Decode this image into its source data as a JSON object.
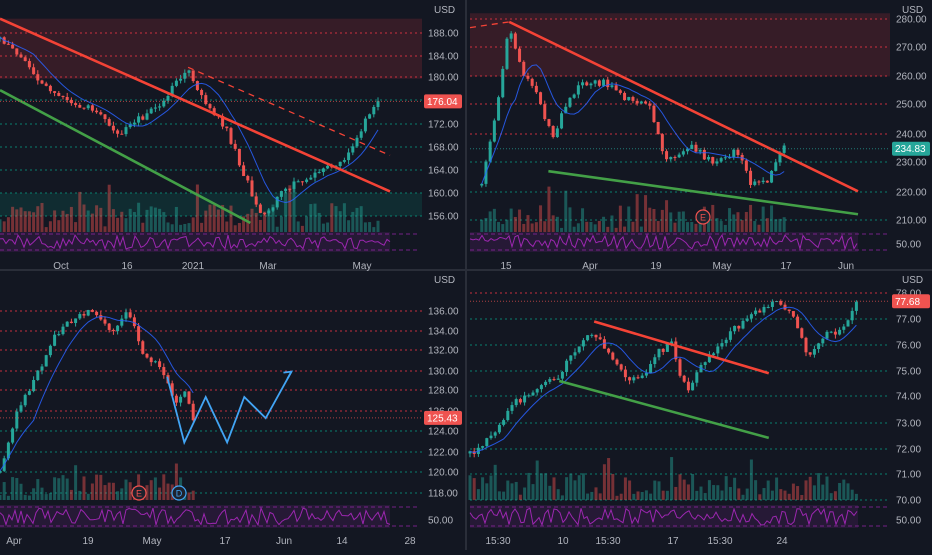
{
  "colors": {
    "background": "#131722",
    "axis_text": "#b2b5be",
    "grid_red": "#f23645",
    "grid_green": "#089981",
    "candle_up": "#26a69a",
    "candle_down": "#ef5350",
    "trend_red": "#f44336",
    "trend_green": "#43a047",
    "projection_blue": "#42a5f5",
    "rsi": "#9c27b0",
    "ma": "#2962ff"
  },
  "chart_data": [
    {
      "id": "top-left",
      "type": "candlestick",
      "currency": "USD",
      "price_ticks": [
        "188.00",
        "184.00",
        "180.00",
        "176.00",
        "172.00",
        "168.00",
        "164.00",
        "160.00",
        "156.00"
      ],
      "ylim": [
        153.0,
        193.0
      ],
      "current_price": "176.04",
      "current_price_color": "red",
      "x_ticks": [
        "Oct",
        "16",
        "2021",
        "Mar",
        "May"
      ],
      "xlim": [
        "2020-09-01",
        "2021-06-10"
      ],
      "resistance_zone": [
        180.0,
        190.5
      ],
      "support_zone": [
        156.0,
        160.0
      ],
      "trendlines": [
        {
          "kind": "descending-resistance",
          "color": "red",
          "style": "solid",
          "from": [
            "2020-09-01",
            190.5
          ],
          "to": [
            "2021-06-10",
            160.3
          ]
        },
        {
          "kind": "channel-top",
          "color": "red",
          "style": "dashed",
          "from": [
            "2021-01-15",
            182.0
          ],
          "to": [
            "2021-06-10",
            166.6
          ]
        },
        {
          "kind": "descending-support",
          "color": "green",
          "style": "solid",
          "from": [
            "2020-09-01",
            178.0
          ],
          "to": [
            "2021-03-01",
            154.8
          ]
        }
      ],
      "price_path": [
        [
          "2020-09-01",
          187
        ],
        [
          "2020-09-20",
          183
        ],
        [
          "2020-10-05",
          178
        ],
        [
          "2020-10-25",
          176
        ],
        [
          "2020-11-10",
          174
        ],
        [
          "2020-11-25",
          170
        ],
        [
          "2020-12-10",
          173
        ],
        [
          "2020-12-25",
          175
        ],
        [
          "2021-01-08",
          180
        ],
        [
          "2021-01-14",
          182
        ],
        [
          "2021-01-28",
          175
        ],
        [
          "2021-02-10",
          172
        ],
        [
          "2021-02-25",
          163
        ],
        [
          "2021-03-05",
          158
        ],
        [
          "2021-03-12",
          156
        ],
        [
          "2021-03-25",
          161
        ],
        [
          "2021-04-08",
          162
        ],
        [
          "2021-04-22",
          164
        ],
        [
          "2021-05-05",
          165
        ],
        [
          "2021-05-15",
          168
        ],
        [
          "2021-05-25",
          174
        ],
        [
          "2021-06-01",
          176.04
        ]
      ],
      "indicators": [
        "volume",
        "rsi"
      ]
    },
    {
      "id": "top-right",
      "type": "candlestick",
      "currency": "USD",
      "price_ticks": [
        "280.00",
        "270.00",
        "260.00",
        "250.00",
        "240.00",
        "230.00",
        "220.00",
        "210.00",
        "50.00"
      ],
      "ylim": [
        204.0,
        283.0
      ],
      "current_price": "234.83",
      "current_price_color": "teal",
      "x_ticks": [
        "15",
        "Apr",
        "19",
        "May",
        "17",
        "Jun"
      ],
      "xlim": [
        "2021-03-05",
        "2021-06-12"
      ],
      "resistance_zone": [
        260.0,
        282.0
      ],
      "event_markers": [
        "E"
      ],
      "trendlines": [
        {
          "kind": "descending-resistance",
          "color": "red",
          "style": "solid",
          "from": [
            "2021-03-15",
            279.0
          ],
          "to": [
            "2021-06-12",
            220.0
          ]
        },
        {
          "kind": "support",
          "color": "green",
          "style": "solid",
          "from": [
            "2021-03-25",
            227.0
          ],
          "to": [
            "2021-06-12",
            212.0
          ]
        },
        {
          "kind": "prior-trend",
          "color": "red",
          "style": "dashed",
          "from": [
            "2021-03-05",
            277.0
          ],
          "to": [
            "2021-03-15",
            279.0
          ]
        }
      ],
      "price_path": [
        [
          "2021-03-08",
          222
        ],
        [
          "2021-03-12",
          250
        ],
        [
          "2021-03-15",
          278
        ],
        [
          "2021-03-18",
          262
        ],
        [
          "2021-03-22",
          255
        ],
        [
          "2021-03-26",
          238
        ],
        [
          "2021-03-30",
          252
        ],
        [
          "2021-04-02",
          257
        ],
        [
          "2021-04-08",
          258
        ],
        [
          "2021-04-14",
          252
        ],
        [
          "2021-04-20",
          250
        ],
        [
          "2021-04-24",
          230
        ],
        [
          "2021-04-30",
          236
        ],
        [
          "2021-05-06",
          230
        ],
        [
          "2021-05-12",
          234
        ],
        [
          "2021-05-16",
          222
        ],
        [
          "2021-05-20",
          224
        ],
        [
          "2021-05-24",
          234.83
        ]
      ],
      "indicators": [
        "volume",
        "rsi"
      ]
    },
    {
      "id": "bottom-left",
      "type": "candlestick",
      "currency": "USD",
      "price_ticks": [
        "136.00",
        "134.00",
        "132.00",
        "130.00",
        "128.00",
        "126.00",
        "124.00",
        "122.00",
        "120.00",
        "118.00",
        "50.00"
      ],
      "ylim": [
        116.0,
        138.6
      ],
      "current_price": "125.43",
      "current_price_color": "red",
      "x_ticks": [
        "Apr",
        "19",
        "May",
        "17",
        "Jun",
        "14",
        "28"
      ],
      "xlim": [
        "2021-04-01",
        "2021-07-01"
      ],
      "event_markers": [
        "E",
        "D"
      ],
      "projection": {
        "color": "blue",
        "path": [
          [
            "2021-05-10",
            129.5
          ],
          [
            "2021-05-14",
            123.0
          ],
          [
            "2021-05-19",
            127.5
          ],
          [
            "2021-05-24",
            123.0
          ],
          [
            "2021-05-28",
            127.5
          ],
          [
            "2021-06-02",
            125.4
          ],
          [
            "2021-06-08",
            130.0
          ]
        ]
      },
      "price_path": [
        [
          "2021-04-01",
          120
        ],
        [
          "2021-04-05",
          126
        ],
        [
          "2021-04-09",
          129
        ],
        [
          "2021-04-13",
          133
        ],
        [
          "2021-04-17",
          135
        ],
        [
          "2021-04-22",
          136
        ],
        [
          "2021-04-27",
          134
        ],
        [
          "2021-05-01",
          136
        ],
        [
          "2021-05-04",
          132
        ],
        [
          "2021-05-07",
          131
        ],
        [
          "2021-05-10",
          129
        ],
        [
          "2021-05-12",
          127
        ],
        [
          "2021-05-14",
          128
        ],
        [
          "2021-05-16",
          125.43
        ]
      ],
      "indicators": [
        "volume",
        "rsi"
      ]
    },
    {
      "id": "bottom-right",
      "type": "candlestick",
      "currency": "USD",
      "price_ticks": [
        "78.00",
        "77.00",
        "76.00",
        "75.00",
        "74.00",
        "73.00",
        "72.00",
        "71.00",
        "70.00",
        "50.00"
      ],
      "ylim": [
        69.6,
        78.5
      ],
      "current_price": "77.68",
      "current_price_color": "red",
      "x_ticks": [
        "15:30",
        "10",
        "15:30",
        "17",
        "15:30",
        "24"
      ],
      "xlim": [
        0,
        100
      ],
      "trendlines": [
        {
          "kind": "descending-resistance",
          "color": "red",
          "style": "solid",
          "from": [
            32,
            76.9
          ],
          "to": [
            77,
            74.9
          ]
        },
        {
          "kind": "descending-support",
          "color": "green",
          "style": "solid",
          "from": [
            23,
            74.6
          ],
          "to": [
            77,
            72.4
          ]
        }
      ],
      "price_path": [
        [
          0,
          71.8
        ],
        [
          4,
          72.2
        ],
        [
          8,
          73.0
        ],
        [
          12,
          73.8
        ],
        [
          16,
          74.2
        ],
        [
          20,
          74.6
        ],
        [
          23,
          74.8
        ],
        [
          27,
          75.8
        ],
        [
          31,
          76.5
        ],
        [
          33,
          76.3
        ],
        [
          36,
          75.6
        ],
        [
          40,
          74.8
        ],
        [
          43,
          74.6
        ],
        [
          46,
          75.1
        ],
        [
          49,
          75.8
        ],
        [
          52,
          76.0
        ],
        [
          54,
          74.8
        ],
        [
          56,
          74.3
        ],
        [
          60,
          75.3
        ],
        [
          64,
          76.0
        ],
        [
          68,
          76.6
        ],
        [
          72,
          77.0
        ],
        [
          76,
          77.5
        ],
        [
          80,
          77.6
        ],
        [
          83,
          77.3
        ],
        [
          85,
          76.4
        ],
        [
          87,
          75.4
        ],
        [
          89,
          75.8
        ],
        [
          92,
          76.6
        ],
        [
          95,
          76.4
        ],
        [
          98,
          77.2
        ],
        [
          100,
          77.68
        ]
      ],
      "indicators": [
        "volume",
        "rsi"
      ]
    }
  ]
}
